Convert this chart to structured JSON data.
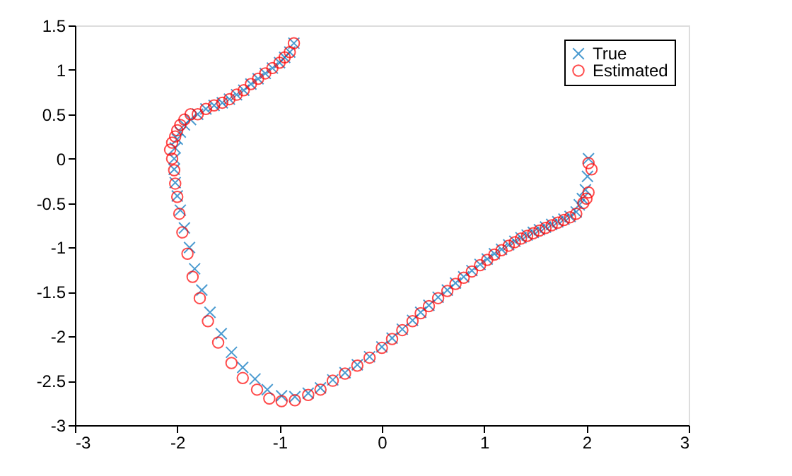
{
  "chart_data": {
    "type": "scatter",
    "xlim": [
      -3,
      3
    ],
    "ylim": [
      -3,
      1.5
    ],
    "xticks": [
      -3,
      -2,
      -1,
      0,
      1,
      2,
      3
    ],
    "yticks": [
      -3,
      -2.5,
      -2,
      -1.5,
      -1,
      -0.5,
      0,
      0.5,
      1,
      1.5
    ],
    "grid": false,
    "legend": "top right",
    "series": [
      {
        "name": "True",
        "color": "#0072bd",
        "marker": "cross",
        "x": [
          2.02,
          2.01,
          1.99,
          1.96,
          1.93,
          1.9,
          1.84,
          1.78,
          1.72,
          1.66,
          1.6,
          1.54,
          1.48,
          1.42,
          1.36,
          1.3,
          1.24,
          1.17,
          1.1,
          1.03,
          0.96,
          0.88,
          0.8,
          0.72,
          0.64,
          0.55,
          0.46,
          0.38,
          0.3,
          0.2,
          0.1,
          0.0,
          -0.12,
          -0.24,
          -0.36,
          -0.48,
          -0.6,
          -0.72,
          -0.85,
          -0.98,
          -1.12,
          -1.24,
          -1.36,
          -1.47,
          -1.57,
          -1.68,
          -1.76,
          -1.83,
          -1.88,
          -1.93,
          -1.97,
          -2.0,
          -2.02,
          -2.03,
          -2.03,
          -2.02,
          -2.0,
          -1.97,
          -1.93,
          -1.87,
          -1.8,
          -1.72,
          -1.64,
          -1.56,
          -1.49,
          -1.42,
          -1.35,
          -1.28,
          -1.21,
          -1.14,
          -1.07,
          -1.0,
          -0.95,
          -0.9,
          -0.86
        ],
        "values": [
          0.0,
          -0.2,
          -0.35,
          -0.45,
          -0.52,
          -0.6,
          -0.65,
          -0.68,
          -0.71,
          -0.74,
          -0.77,
          -0.8,
          -0.83,
          -0.86,
          -0.89,
          -0.93,
          -0.97,
          -1.02,
          -1.07,
          -1.13,
          -1.19,
          -1.26,
          -1.33,
          -1.4,
          -1.48,
          -1.56,
          -1.65,
          -1.73,
          -1.82,
          -1.92,
          -2.02,
          -2.12,
          -2.23,
          -2.32,
          -2.41,
          -2.49,
          -2.58,
          -2.64,
          -2.68,
          -2.67,
          -2.6,
          -2.48,
          -2.35,
          -2.18,
          -1.97,
          -1.73,
          -1.48,
          -1.24,
          -1.0,
          -0.78,
          -0.58,
          -0.42,
          -0.27,
          -0.12,
          0.0,
          0.12,
          0.22,
          0.3,
          0.38,
          0.44,
          0.5,
          0.56,
          0.6,
          0.63,
          0.67,
          0.72,
          0.77,
          0.84,
          0.9,
          0.96,
          1.02,
          1.08,
          1.14,
          1.2,
          1.3
        ]
      },
      {
        "name": "Estimated",
        "color": "#ff0000",
        "marker": "circle",
        "x": [
          2.02,
          2.05,
          2.02,
          2.0,
          1.97,
          1.9,
          1.84,
          1.78,
          1.72,
          1.66,
          1.6,
          1.54,
          1.48,
          1.42,
          1.36,
          1.3,
          1.24,
          1.17,
          1.1,
          1.03,
          0.96,
          0.88,
          0.8,
          0.72,
          0.64,
          0.55,
          0.46,
          0.38,
          0.3,
          0.2,
          0.1,
          0.0,
          -0.12,
          -0.24,
          -0.36,
          -0.48,
          -0.6,
          -0.72,
          -0.85,
          -0.98,
          -1.1,
          -1.22,
          -1.36,
          -1.47,
          -1.6,
          -1.7,
          -1.78,
          -1.85,
          -1.9,
          -1.95,
          -1.98,
          -2.0,
          -2.02,
          -2.03,
          -2.05,
          -2.07,
          -2.05,
          -2.02,
          -2.0,
          -1.97,
          -1.93,
          -1.87,
          -1.8,
          -1.72,
          -1.64,
          -1.56,
          -1.49,
          -1.42,
          -1.35,
          -1.28,
          -1.21,
          -1.14,
          -1.07,
          -1.0,
          -0.95,
          -0.9,
          -0.86
        ],
        "values": [
          -0.05,
          -0.12,
          -0.38,
          -0.45,
          -0.5,
          -0.62,
          -0.66,
          -0.69,
          -0.72,
          -0.75,
          -0.78,
          -0.81,
          -0.84,
          -0.87,
          -0.9,
          -0.94,
          -0.98,
          -1.03,
          -1.08,
          -1.14,
          -1.2,
          -1.27,
          -1.34,
          -1.41,
          -1.49,
          -1.57,
          -1.66,
          -1.74,
          -1.83,
          -1.93,
          -2.03,
          -2.13,
          -2.24,
          -2.33,
          -2.42,
          -2.5,
          -2.6,
          -2.66,
          -2.72,
          -2.73,
          -2.7,
          -2.6,
          -2.47,
          -2.3,
          -2.07,
          -1.83,
          -1.57,
          -1.33,
          -1.07,
          -0.83,
          -0.62,
          -0.43,
          -0.28,
          -0.13,
          0.0,
          0.1,
          0.18,
          0.25,
          0.32,
          0.38,
          0.44,
          0.5,
          0.5,
          0.56,
          0.6,
          0.63,
          0.67,
          0.72,
          0.77,
          0.84,
          0.9,
          0.96,
          1.02,
          1.08,
          1.14,
          1.2,
          1.3
        ]
      }
    ]
  }
}
